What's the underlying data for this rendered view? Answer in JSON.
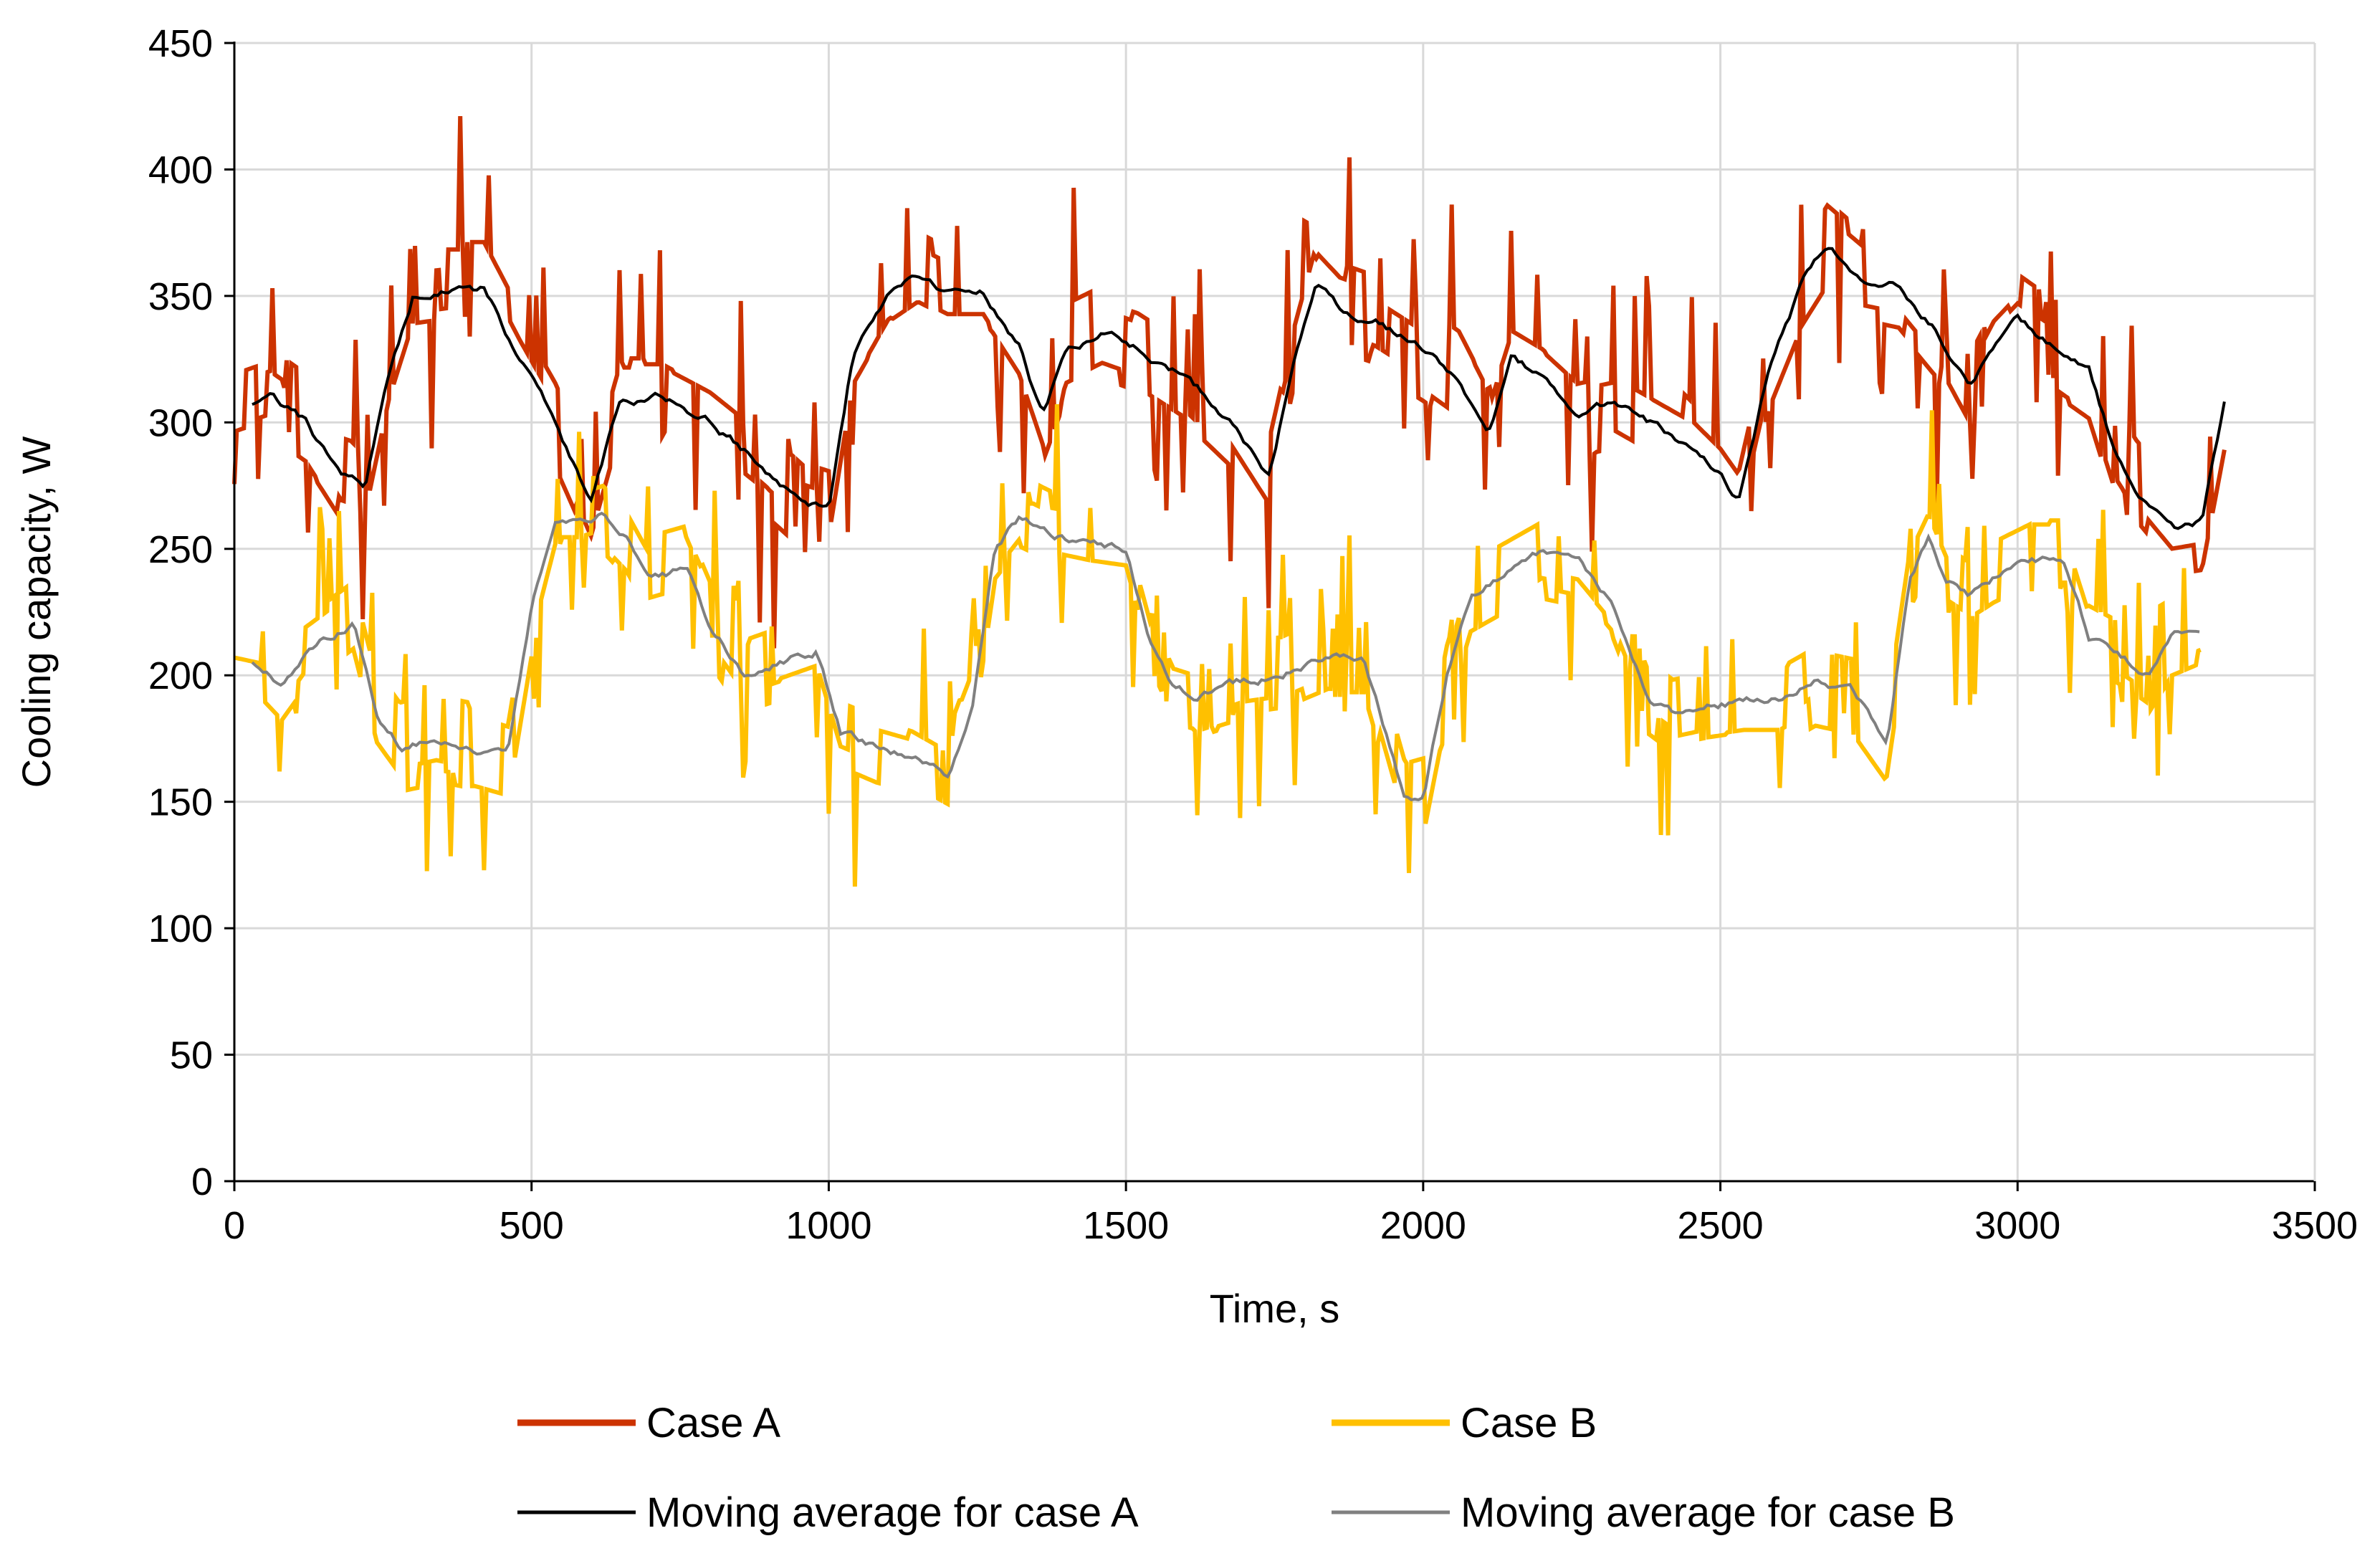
{
  "chart_data": {
    "type": "line",
    "title": "",
    "xlabel": "Time, s",
    "ylabel": "Cooling capacity, W",
    "xlim": [
      0,
      3500
    ],
    "ylim": [
      0,
      450
    ],
    "xticks": [
      0,
      500,
      1000,
      1500,
      2000,
      2500,
      3000,
      3500
    ],
    "yticks": [
      0,
      50,
      100,
      150,
      200,
      250,
      300,
      350,
      400,
      450
    ],
    "grid": true,
    "legend_position": "bottom",
    "series": [
      {
        "name": "Case A",
        "color": "#cc3300",
        "style": "noisy-raw",
        "noise_amplitude": 22,
        "x": [
          0,
          60,
          120,
          180,
          220,
          260,
          300,
          360,
          420,
          480,
          540,
          600,
          650,
          720,
          800,
          880,
          960,
          1000,
          1040,
          1100,
          1150,
          1200,
          1260,
          1320,
          1360,
          1400,
          1460,
          1520,
          1600,
          1680,
          1740,
          1780,
          1820,
          1860,
          1920,
          2000,
          2060,
          2110,
          2150,
          2200,
          2260,
          2320,
          2380,
          2440,
          2500,
          2530,
          2580,
          2640,
          2680,
          2740,
          2800,
          2860,
          2920,
          2960,
          3000,
          3060,
          3120,
          3160,
          3200,
          3260,
          3310,
          3350
        ],
        "values": [
          305,
          310,
          300,
          278,
          275,
          320,
          350,
          352,
          352,
          325,
          300,
          268,
          310,
          310,
          300,
          285,
          268,
          265,
          325,
          350,
          358,
          352,
          352,
          330,
          302,
          328,
          335,
          330,
          318,
          300,
          278,
          320,
          355,
          345,
          340,
          328,
          318,
          295,
          325,
          318,
          305,
          308,
          300,
          292,
          278,
          268,
          320,
          355,
          370,
          358,
          355,
          338,
          312,
          330,
          340,
          330,
          320,
          290,
          275,
          258,
          260,
          310
        ]
      },
      {
        "name": "Case B",
        "color": "#ffc000",
        "style": "noisy-raw",
        "noise_amplitude": 20,
        "x": [
          0,
          40,
          80,
          120,
          160,
          200,
          240,
          280,
          340,
          400,
          460,
          500,
          540,
          580,
          620,
          660,
          700,
          760,
          800,
          860,
          920,
          980,
          1020,
          1080,
          1140,
          1200,
          1240,
          1280,
          1320,
          1380,
          1440,
          1500,
          1540,
          1580,
          1620,
          1700,
          1760,
          1840,
          1900,
          1940,
          1970,
          2000,
          2040,
          2080,
          2140,
          2200,
          2260,
          2320,
          2380,
          2420,
          2480,
          2540,
          2600,
          2660,
          2720,
          2780,
          2820,
          2850,
          2880,
          2920,
          2960,
          3020,
          3080,
          3120,
          3160,
          3220,
          3260,
          3310
        ],
        "values": [
          207,
          205,
          195,
          208,
          215,
          222,
          185,
          172,
          175,
          172,
          168,
          225,
          262,
          262,
          265,
          255,
          238,
          242,
          220,
          200,
          205,
          210,
          178,
          172,
          168,
          160,
          185,
          250,
          262,
          255,
          252,
          250,
          215,
          195,
          192,
          198,
          200,
          208,
          208,
          175,
          150,
          152,
          200,
          232,
          240,
          248,
          245,
          228,
          192,
          185,
          188,
          190,
          190,
          198,
          195,
          175,
          240,
          255,
          238,
          232,
          238,
          245,
          245,
          215,
          210,
          200,
          215,
          220
        ]
      },
      {
        "name": "Moving average for case A",
        "color": "#000000",
        "style": "smooth",
        "x": [
          0,
          60,
          120,
          180,
          220,
          260,
          300,
          360,
          420,
          480,
          540,
          600,
          650,
          720,
          800,
          880,
          960,
          1000,
          1040,
          1100,
          1150,
          1200,
          1260,
          1320,
          1360,
          1400,
          1460,
          1520,
          1600,
          1680,
          1740,
          1780,
          1820,
          1860,
          1920,
          2000,
          2060,
          2110,
          2150,
          2200,
          2260,
          2320,
          2380,
          2440,
          2500,
          2530,
          2580,
          2640,
          2680,
          2740,
          2800,
          2860,
          2920,
          2960,
          3000,
          3060,
          3120,
          3160,
          3200,
          3260,
          3310,
          3350
        ],
        "values": [
          305,
          310,
          300,
          278,
          275,
          320,
          350,
          352,
          352,
          325,
          300,
          268,
          310,
          310,
          300,
          285,
          268,
          265,
          325,
          350,
          358,
          352,
          352,
          330,
          302,
          328,
          335,
          330,
          318,
          300,
          278,
          320,
          355,
          345,
          340,
          328,
          318,
          295,
          325,
          318,
          305,
          308,
          300,
          292,
          278,
          268,
          320,
          355,
          370,
          358,
          355,
          338,
          312,
          330,
          340,
          330,
          320,
          290,
          275,
          258,
          260,
          310
        ]
      },
      {
        "name": "Moving average for case B",
        "color": "#808080",
        "style": "smooth",
        "x": [
          0,
          40,
          80,
          120,
          160,
          200,
          240,
          280,
          340,
          400,
          460,
          500,
          540,
          580,
          620,
          660,
          700,
          760,
          800,
          860,
          920,
          980,
          1020,
          1080,
          1140,
          1200,
          1240,
          1280,
          1320,
          1380,
          1440,
          1500,
          1540,
          1580,
          1620,
          1700,
          1760,
          1840,
          1900,
          1940,
          1970,
          2000,
          2040,
          2080,
          2140,
          2200,
          2260,
          2320,
          2380,
          2420,
          2480,
          2540,
          2600,
          2660,
          2720,
          2780,
          2820,
          2850,
          2880,
          2920,
          2960,
          3020,
          3080,
          3120,
          3160,
          3220,
          3260,
          3310
        ],
        "values": [
          207,
          205,
          195,
          208,
          215,
          222,
          185,
          172,
          175,
          172,
          168,
          225,
          262,
          262,
          265,
          255,
          238,
          242,
          220,
          200,
          205,
          210,
          178,
          172,
          168,
          160,
          185,
          250,
          262,
          255,
          252,
          250,
          215,
          195,
          192,
          198,
          200,
          208,
          208,
          175,
          150,
          152,
          200,
          232,
          240,
          248,
          245,
          228,
          192,
          185,
          188,
          190,
          190,
          198,
          195,
          175,
          240,
          255,
          238,
          232,
          238,
          245,
          245,
          215,
          210,
          200,
          215,
          220
        ]
      }
    ]
  }
}
